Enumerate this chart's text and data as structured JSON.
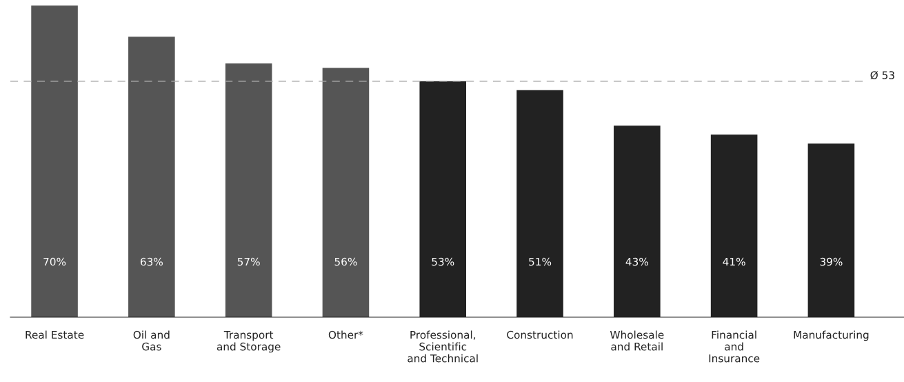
{
  "chart_data": {
    "type": "bar",
    "categories": [
      "Real Estate",
      "Oil and\nGas",
      "Transport\nand Storage",
      "Other*",
      "Professional,\nScientific\nand Technical",
      "Construction",
      "Wholesale\nand Retail",
      "Financial\nand\nInsurance",
      "Manufacturing"
    ],
    "values": [
      70,
      63,
      57,
      56,
      53,
      51,
      43,
      41,
      39
    ],
    "value_labels": [
      "70%",
      "63%",
      "57%",
      "56%",
      "53%",
      "51%",
      "43%",
      "41%",
      "39%"
    ],
    "colors": [
      "#555555",
      "#555555",
      "#555555",
      "#555555",
      "#222222",
      "#222222",
      "#222222",
      "#222222",
      "#222222"
    ],
    "ref_lines": [
      {
        "axis": "y",
        "value": 53,
        "label": "Ø 53",
        "color": "#aaaaaa",
        "line_style": "dashed"
      }
    ],
    "grid": false,
    "legend": false
  }
}
